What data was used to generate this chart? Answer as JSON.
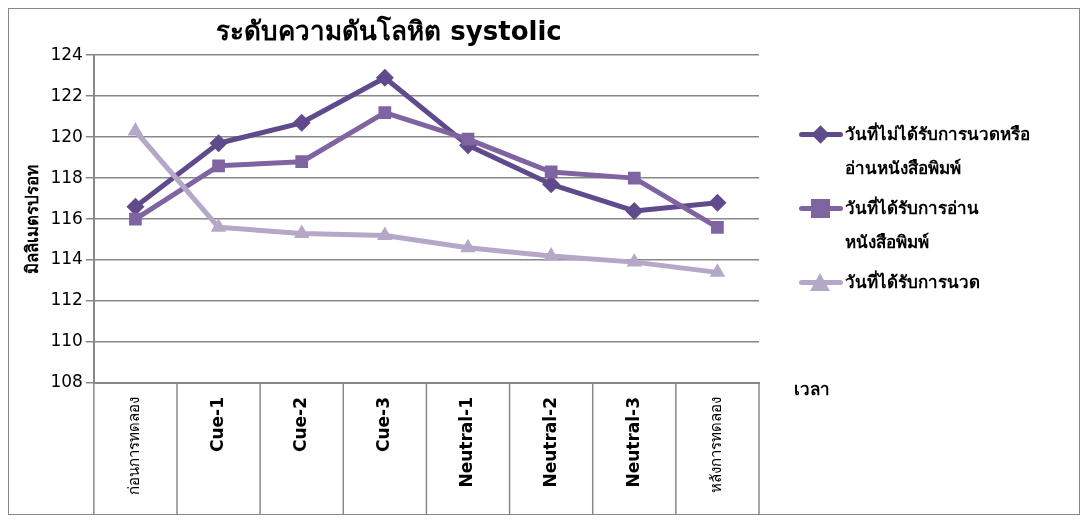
{
  "chart_data": {
    "type": "line",
    "title": "ระดับความดันโลหิต systolic",
    "xlabel": "เวลา",
    "ylabel": "มิลลิเมตรปรอท",
    "categories": [
      "ก่อนการทดลอง",
      "Cue-1",
      "Cue-2",
      "Cue-3",
      "Neutral-1",
      "Neutral-2",
      "Neutral-3",
      "หลังการทดลอง"
    ],
    "series": [
      {
        "name": "วันที่ไม่ได้รับการนวดหรืออ่านหนังสือพิมพ์",
        "color": "#5f4b8b",
        "marker": "diamond",
        "values": [
          116.6,
          119.7,
          120.7,
          122.9,
          119.6,
          117.7,
          116.4,
          116.8
        ]
      },
      {
        "name": "วันที่ได้รับการอ่านหนังสือพิมพ์",
        "color": "#8064a2",
        "marker": "square",
        "values": [
          116.0,
          118.6,
          118.8,
          121.2,
          119.9,
          118.3,
          118.0,
          115.6
        ]
      },
      {
        "name": "วันที่ได้รับการนวด",
        "color": "#b4a7c8",
        "marker": "triangle",
        "values": [
          120.3,
          115.6,
          115.3,
          115.2,
          114.6,
          114.2,
          113.9,
          113.4
        ]
      }
    ],
    "ylim": [
      108,
      124
    ],
    "yticks": [
      108,
      110,
      112,
      114,
      116,
      118,
      120,
      122,
      124
    ],
    "grid": "y",
    "legend": "right"
  }
}
